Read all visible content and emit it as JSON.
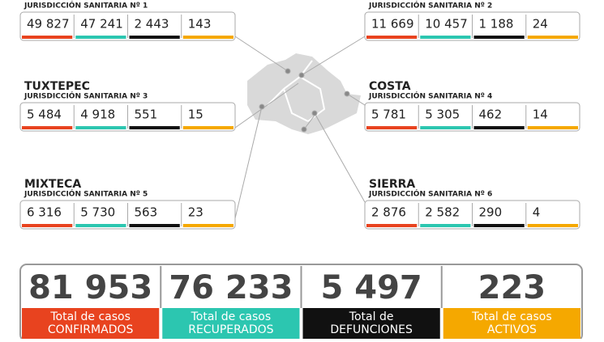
{
  "jurisdictions": [
    {
      "subtitle": "JURISDICCIÓN SANITARIA Nº 1",
      "values": [
        "49 827",
        "47 241",
        "2 443",
        "143"
      ]
    },
    {
      "subtitle": "JURISDICCIÓN SANITARIA Nº 2",
      "values": [
        "11 669",
        "10 457",
        "1 188",
        "24"
      ]
    },
    {
      "name": "TUXTEPEC",
      "subtitle": "JURISDICCIÓN SANITARIA Nº 3",
      "values": [
        "5 484",
        "4 918",
        "551",
        "15"
      ]
    },
    {
      "name": "COSTA",
      "subtitle": "JURISDICCIÓN SANITARIA Nº 4",
      "values": [
        "5 781",
        "5 305",
        "462",
        "14"
      ]
    },
    {
      "name": "MIXTECA",
      "subtitle": "JURISDICCIÓN SANITARIA Nº 5",
      "values": [
        "6 316",
        "5 730",
        "563",
        "23"
      ]
    },
    {
      "name": "SIERRA",
      "subtitle": "JURISDICCIÓN SANITARIA Nº 6",
      "values": [
        "2 876",
        "2 582",
        "290",
        "4"
      ]
    }
  ],
  "totals": [
    {
      "value": "81 953",
      "label": "Total de casos",
      "status": "CONFIRMADOS"
    },
    {
      "value": "76 233",
      "label": "Total de casos",
      "status": "RECUPERADOS"
    },
    {
      "value": "5 497",
      "label": "Total de",
      "status": "DEFUNCIONES"
    },
    {
      "value": "223",
      "label": "Total de casos",
      "status": "ACTIVOS"
    }
  ]
}
